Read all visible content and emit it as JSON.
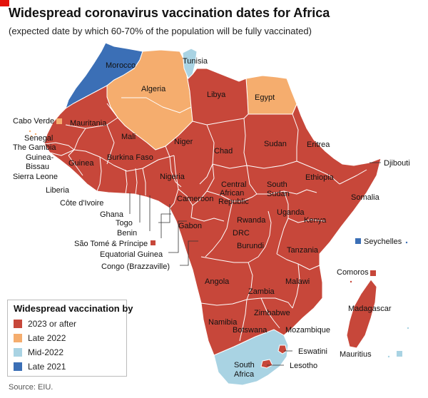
{
  "header": {
    "title": "Widespread coronavirus vaccination dates for Africa",
    "subtitle": "(expected date by which 60-70% of the population will be fully vaccinated)"
  },
  "colors": {
    "c2023": "#c7473a",
    "late2022": "#f5ad6e",
    "mid2022": "#a9d3e3",
    "late2021": "#3b6fb6",
    "brand": "#e3120b"
  },
  "legend": {
    "title": "Widespread vaccination by",
    "items": [
      {
        "label": "2023 or after",
        "category": "c2023"
      },
      {
        "label": "Late 2022",
        "category": "late2022"
      },
      {
        "label": "Mid-2022",
        "category": "mid2022"
      },
      {
        "label": "Late 2021",
        "category": "late2021"
      }
    ]
  },
  "countries": [
    {
      "name": "Morocco",
      "category": "late2021"
    },
    {
      "name": "Algeria",
      "category": "late2022"
    },
    {
      "name": "Tunisia",
      "category": "mid2022"
    },
    {
      "name": "Libya",
      "category": "c2023"
    },
    {
      "name": "Egypt",
      "category": "late2022"
    },
    {
      "name": "Mauritania",
      "category": "c2023"
    },
    {
      "name": "Mali",
      "category": "c2023"
    },
    {
      "name": "Niger",
      "category": "c2023"
    },
    {
      "name": "Chad",
      "category": "c2023"
    },
    {
      "name": "Sudan",
      "category": "c2023"
    },
    {
      "name": "Eritrea",
      "category": "c2023"
    },
    {
      "name": "Djibouti",
      "category": "c2023"
    },
    {
      "name": "Ethiopia",
      "category": "c2023"
    },
    {
      "name": "Somalia",
      "category": "c2023"
    },
    {
      "name": "Senegal",
      "category": "c2023"
    },
    {
      "name": "The Gambia",
      "category": "c2023"
    },
    {
      "name": "Guinea-Bissau",
      "category": "c2023"
    },
    {
      "name": "Guinea",
      "category": "c2023"
    },
    {
      "name": "Sierra Leone",
      "category": "c2023"
    },
    {
      "name": "Liberia",
      "category": "c2023"
    },
    {
      "name": "Côte d'Ivoire",
      "category": "c2023"
    },
    {
      "name": "Burkina Faso",
      "category": "c2023"
    },
    {
      "name": "Ghana",
      "category": "c2023"
    },
    {
      "name": "Togo",
      "category": "c2023"
    },
    {
      "name": "Benin",
      "category": "c2023"
    },
    {
      "name": "Nigeria",
      "category": "c2023"
    },
    {
      "name": "Cameroon",
      "category": "c2023"
    },
    {
      "name": "Central African Republic",
      "category": "c2023"
    },
    {
      "name": "South Sudan",
      "category": "c2023"
    },
    {
      "name": "Uganda",
      "category": "c2023"
    },
    {
      "name": "Kenya",
      "category": "c2023"
    },
    {
      "name": "Rwanda",
      "category": "c2023"
    },
    {
      "name": "Burundi",
      "category": "c2023"
    },
    {
      "name": "DRC",
      "category": "c2023"
    },
    {
      "name": "Gabon",
      "category": "c2023"
    },
    {
      "name": "Equatorial Guinea",
      "category": "c2023"
    },
    {
      "name": "Congo (Brazzaville)",
      "category": "c2023"
    },
    {
      "name": "São Tomé & Príncipe",
      "category": "c2023"
    },
    {
      "name": "Tanzania",
      "category": "c2023"
    },
    {
      "name": "Angola",
      "category": "c2023"
    },
    {
      "name": "Zambia",
      "category": "c2023"
    },
    {
      "name": "Malawi",
      "category": "c2023"
    },
    {
      "name": "Mozambique",
      "category": "c2023"
    },
    {
      "name": "Zimbabwe",
      "category": "c2023"
    },
    {
      "name": "Namibia",
      "category": "c2023"
    },
    {
      "name": "Botswana",
      "category": "c2023"
    },
    {
      "name": "South Africa",
      "category": "mid2022"
    },
    {
      "name": "Eswatini",
      "category": "c2023"
    },
    {
      "name": "Lesotho",
      "category": "c2023"
    },
    {
      "name": "Madagascar",
      "category": "c2023"
    },
    {
      "name": "Comoros",
      "category": "c2023"
    },
    {
      "name": "Seychelles",
      "category": "late2021"
    },
    {
      "name": "Mauritius",
      "category": "mid2022"
    },
    {
      "name": "Cabo Verde",
      "category": "late2022"
    }
  ],
  "labels": {
    "morocco": "Morocco",
    "tunisia": "Tunisia",
    "algeria": "Algeria",
    "libya": "Libya",
    "egypt": "Egypt",
    "cabo_verde": "Cabo Verde",
    "mauritania": "Mauritania",
    "mali": "Mali",
    "niger": "Niger",
    "chad": "Chad",
    "sudan": "Sudan",
    "eritrea": "Eritrea",
    "djibouti": "Djibouti",
    "senegal": "Senegal",
    "gambia": "The Gambia",
    "guinea_bissau_1": "Guinea-",
    "guinea_bissau_2": "Bissau",
    "guinea": "Guinea",
    "sierra_leone": "Sierra Leone",
    "burkina": "Burkina Faso",
    "nigeria": "Nigeria",
    "ethiopia": "Ethiopia",
    "car_1": "Central",
    "car_2": "African",
    "car_3": "Republic",
    "south_sudan_1": "South",
    "south_sudan_2": "Sudan",
    "somalia": "Somalia",
    "liberia": "Liberia",
    "cote": "Côte d'Ivoire",
    "cameroon": "Cameroon",
    "ghana": "Ghana",
    "togo": "Togo",
    "benin": "Benin",
    "uganda": "Uganda",
    "rwanda": "Rwanda",
    "kenya": "Kenya",
    "gabon": "Gabon",
    "drc": "DRC",
    "burundi": "Burundi",
    "sao_tome": "São Tomé & Príncipe",
    "seychelles": "Seychelles",
    "tanzania": "Tanzania",
    "eq_guinea": "Equatorial Guinea",
    "congo": "Congo (Brazzaville)",
    "comoros": "Comoros",
    "angola": "Angola",
    "malawi": "Malawi",
    "zambia": "Zambia",
    "madagascar": "Madagascar",
    "zimbabwe": "Zimbabwe",
    "namibia": "Namibia",
    "mozambique": "Mozambique",
    "botswana": "Botswana",
    "eswatini": "Eswatini",
    "mauritius": "Mauritius",
    "south_africa_1": "South",
    "south_africa_2": "Africa",
    "lesotho": "Lesotho"
  },
  "source": "Source: EIU."
}
